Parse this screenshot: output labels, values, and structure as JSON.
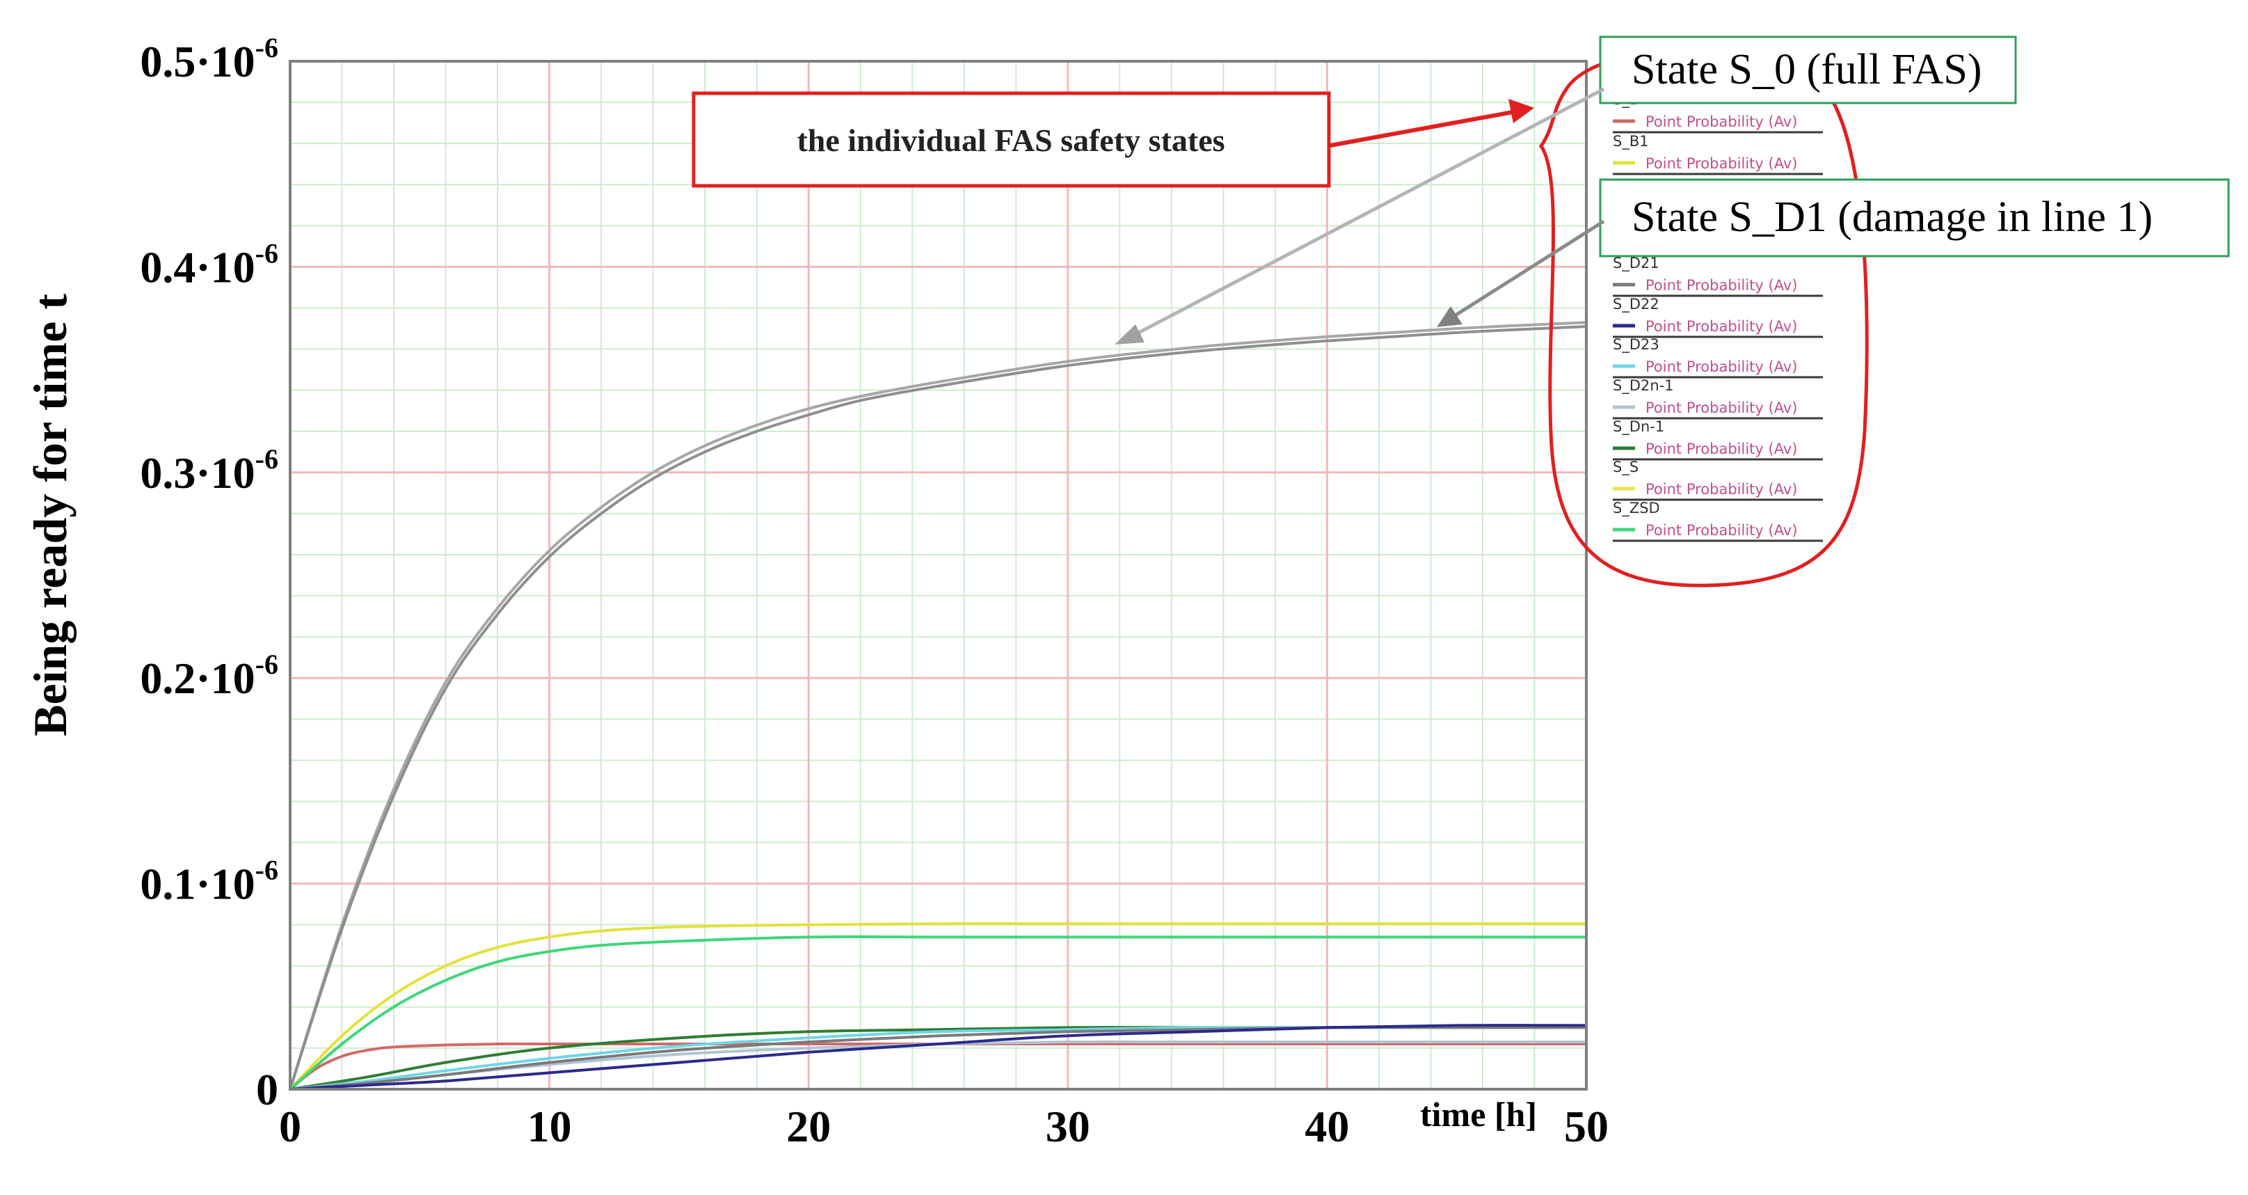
{
  "chart_data": {
    "type": "line",
    "ylabel": "Being ready for time t",
    "xlabel": "time [h]",
    "xlim": [
      0,
      50
    ],
    "ylim": [
      0,
      0.5
    ],
    "x_ticks": [
      "0",
      "10",
      "20",
      "30",
      "40",
      "50"
    ],
    "y_ticks": [
      {
        "base": "0",
        "exp": ""
      },
      {
        "base": "0.1·10",
        "exp": "-6"
      },
      {
        "base": "0.2·10",
        "exp": "-6"
      },
      {
        "base": "0.3·10",
        "exp": "-6"
      },
      {
        "base": "0.4·10",
        "exp": "-6"
      },
      {
        "base": "0.5·10",
        "exp": "-6"
      }
    ],
    "grid": true,
    "legend_position": "right",
    "legend_entry_label": "Point Probability (Av)",
    "legend": [
      {
        "name": "S_B",
        "color": "#d06a6a"
      },
      {
        "name": "S_B1",
        "color": "#e2e23a"
      },
      {
        "name": "S_D21",
        "color": "#7a7a7a"
      },
      {
        "name": "S_D22",
        "color": "#2a2a8c"
      },
      {
        "name": "S_D23",
        "color": "#6fd6e6"
      },
      {
        "name": "S_D2n-1",
        "color": "#b0c4d4"
      },
      {
        "name": "S_Dn-1",
        "color": "#2e7d32"
      },
      {
        "name": "S_S",
        "color": "#e6e64a"
      },
      {
        "name": "S_ZSD",
        "color": "#3fd67a"
      }
    ],
    "series": [
      {
        "name": "State S_0 (full FAS)",
        "color": "#a6a6a6",
        "x": [
          0,
          2,
          4,
          6,
          8,
          10,
          12,
          14,
          16,
          18,
          20,
          22,
          25,
          30,
          35,
          40,
          45,
          50
        ],
        "y": [
          0,
          0.08,
          0.146,
          0.198,
          0.234,
          0.262,
          0.283,
          0.3,
          0.313,
          0.323,
          0.331,
          0.337,
          0.344,
          0.354,
          0.361,
          0.366,
          0.37,
          0.373
        ]
      },
      {
        "name": "State S_D1 (damage in line 1)",
        "color": "#8e8e8e",
        "x": [
          0,
          2,
          4,
          6,
          8,
          10,
          12,
          14,
          16,
          18,
          20,
          22,
          25,
          30,
          35,
          40,
          45,
          50
        ],
        "y": [
          0,
          0.078,
          0.143,
          0.195,
          0.231,
          0.259,
          0.28,
          0.297,
          0.31,
          0.32,
          0.328,
          0.335,
          0.342,
          0.352,
          0.359,
          0.364,
          0.368,
          0.371
        ]
      },
      {
        "name": "S_B",
        "color": "#d06a6a",
        "x": [
          0,
          1,
          2,
          3,
          4,
          6,
          8,
          10,
          15,
          20,
          30,
          40,
          50
        ],
        "y": [
          0,
          0.01,
          0.016,
          0.019,
          0.0205,
          0.0215,
          0.022,
          0.022,
          0.022,
          0.022,
          0.022,
          0.022,
          0.022
        ]
      },
      {
        "name": "S_B1",
        "color": "#e2e23a",
        "x": [
          0,
          2,
          4,
          6,
          8,
          10,
          12,
          15,
          20,
          25,
          30,
          35,
          40,
          45,
          50
        ],
        "y": [
          0,
          0.026,
          0.046,
          0.06,
          0.069,
          0.074,
          0.077,
          0.079,
          0.08,
          0.0805,
          0.0805,
          0.0805,
          0.0805,
          0.0805,
          0.0805
        ]
      },
      {
        "name": "S_ZSD",
        "color": "#3fd67a",
        "x": [
          0,
          2,
          4,
          6,
          8,
          10,
          12,
          15,
          20,
          25,
          30,
          35,
          40,
          45,
          50
        ],
        "y": [
          0,
          0.022,
          0.04,
          0.053,
          0.062,
          0.067,
          0.07,
          0.072,
          0.074,
          0.074,
          0.074,
          0.074,
          0.074,
          0.074,
          0.074
        ]
      },
      {
        "name": "S_Dn-1",
        "color": "#2e7d32",
        "x": [
          0,
          3,
          6,
          10,
          15,
          20,
          25,
          30,
          35,
          40,
          45,
          50
        ],
        "y": [
          0,
          0.006,
          0.013,
          0.02,
          0.025,
          0.028,
          0.029,
          0.03,
          0.03,
          0.03,
          0.03,
          0.03
        ]
      },
      {
        "name": "S_D23",
        "color": "#6fd6e6",
        "x": [
          0,
          3,
          6,
          10,
          15,
          20,
          25,
          30,
          35,
          40,
          45,
          50
        ],
        "y": [
          0,
          0.004,
          0.009,
          0.015,
          0.021,
          0.025,
          0.028,
          0.029,
          0.03,
          0.03,
          0.03,
          0.03
        ]
      },
      {
        "name": "S_D2n-1",
        "color": "#b0c4d4",
        "x": [
          0,
          3,
          6,
          10,
          15,
          20,
          25,
          30,
          35,
          40,
          45,
          50
        ],
        "y": [
          0,
          0.003,
          0.007,
          0.012,
          0.017,
          0.02,
          0.022,
          0.023,
          0.023,
          0.023,
          0.023,
          0.023
        ]
      },
      {
        "name": "S_D21",
        "color": "#7a7a7a",
        "x": [
          0,
          3,
          6,
          10,
          15,
          20,
          25,
          30,
          35,
          40,
          45,
          50
        ],
        "y": [
          0,
          0.003,
          0.007,
          0.013,
          0.019,
          0.023,
          0.026,
          0.028,
          0.029,
          0.03,
          0.03,
          0.03
        ]
      },
      {
        "name": "S_D22",
        "color": "#2a2a8c",
        "x": [
          0,
          3,
          6,
          10,
          15,
          20,
          25,
          30,
          35,
          40,
          45,
          50
        ],
        "y": [
          0,
          0.002,
          0.004,
          0.008,
          0.013,
          0.018,
          0.022,
          0.026,
          0.028,
          0.03,
          0.031,
          0.031
        ]
      }
    ],
    "annotations": {
      "callout": "the individual FAS safety states",
      "state_s0": "State S_0 (full FAS)",
      "state_sd1": "State S_D1 (damage in line 1)"
    }
  }
}
